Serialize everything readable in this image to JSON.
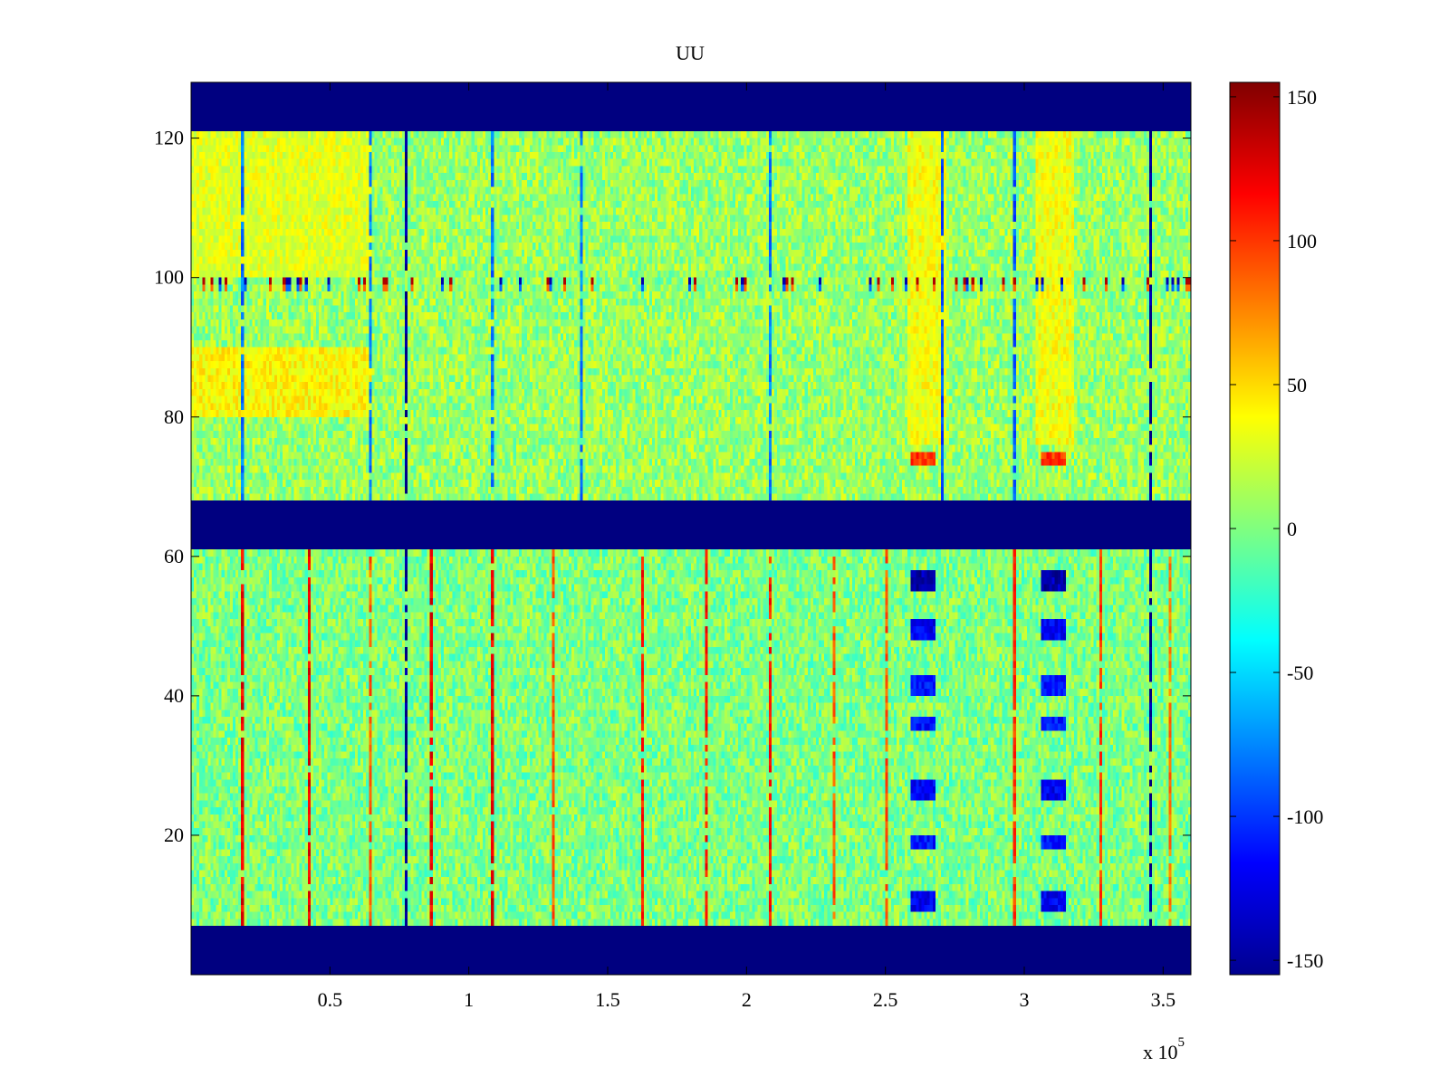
{
  "chart_data": {
    "type": "heatmap",
    "title": "UU",
    "xlabel": "",
    "ylabel": "",
    "x_exponent_label": "x 10",
    "x_exponent_power": "5",
    "xlim": [
      0,
      360000
    ],
    "ylim": [
      0,
      128
    ],
    "x_ticks": [
      50000,
      100000,
      150000,
      200000,
      250000,
      300000,
      350000
    ],
    "x_tick_labels": [
      "0.5",
      "1",
      "1.5",
      "2",
      "2.5",
      "3",
      "3.5"
    ],
    "y_ticks": [
      20,
      40,
      60,
      80,
      100,
      120
    ],
    "y_tick_labels": [
      "20",
      "40",
      "60",
      "80",
      "100",
      "120"
    ],
    "colormap": "jet",
    "clim": [
      -155,
      155
    ],
    "colorbar_ticks": [
      150,
      100,
      50,
      0,
      -50,
      -100,
      -150
    ],
    "colorbar_tick_labels": [
      "150",
      "100",
      "50",
      "0",
      "-50",
      "-100",
      "-150"
    ],
    "masked_value": -155,
    "masked_row_bands": [
      {
        "y_from": 0,
        "y_to": 7,
        "value": -155
      },
      {
        "y_from": 61,
        "y_to": 68,
        "value": -155
      },
      {
        "y_from": 121,
        "y_to": 128,
        "value": -155
      }
    ],
    "background_mean_by_band": [
      {
        "y_from": 7,
        "y_to": 61,
        "mean": 0
      },
      {
        "y_from": 68,
        "y_to": 98,
        "mean": 8
      },
      {
        "y_from": 98,
        "y_to": 101,
        "mean": 5
      },
      {
        "y_from": 101,
        "y_to": 121,
        "mean": 8
      }
    ],
    "noise_amplitude": 25,
    "vertical_streaks": [
      {
        "x": 18000,
        "value": 120,
        "y_from": 7,
        "y_to": 61
      },
      {
        "x": 42000,
        "value": 120,
        "y_from": 7,
        "y_to": 61
      },
      {
        "x": 64000,
        "value": 90,
        "y_from": 7,
        "y_to": 61
      },
      {
        "x": 77000,
        "value": -150,
        "y_from": 7,
        "y_to": 121
      },
      {
        "x": 86000,
        "value": 120,
        "y_from": 7,
        "y_to": 61
      },
      {
        "x": 108000,
        "value": 120,
        "y_from": 7,
        "y_to": 61
      },
      {
        "x": 130000,
        "value": 90,
        "y_from": 7,
        "y_to": 61
      },
      {
        "x": 162000,
        "value": 110,
        "y_from": 7,
        "y_to": 61
      },
      {
        "x": 185000,
        "value": 110,
        "y_from": 7,
        "y_to": 61
      },
      {
        "x": 208000,
        "value": 110,
        "y_from": 7,
        "y_to": 61
      },
      {
        "x": 231000,
        "value": 90,
        "y_from": 7,
        "y_to": 61
      },
      {
        "x": 250000,
        "value": 90,
        "y_from": 7,
        "y_to": 61
      },
      {
        "x": 296000,
        "value": 100,
        "y_from": 7,
        "y_to": 61
      },
      {
        "x": 327000,
        "value": 100,
        "y_from": 7,
        "y_to": 61
      },
      {
        "x": 345000,
        "value": -150,
        "y_from": 7,
        "y_to": 121
      },
      {
        "x": 352000,
        "value": 80,
        "y_from": 7,
        "y_to": 61
      },
      {
        "x": 18000,
        "value": -80,
        "y_from": 68,
        "y_to": 121
      },
      {
        "x": 64000,
        "value": -80,
        "y_from": 68,
        "y_to": 121
      },
      {
        "x": 108000,
        "value": -80,
        "y_from": 68,
        "y_to": 121
      },
      {
        "x": 140000,
        "value": -80,
        "y_from": 68,
        "y_to": 121
      },
      {
        "x": 208000,
        "value": -80,
        "y_from": 68,
        "y_to": 121
      },
      {
        "x": 270000,
        "value": -90,
        "y_from": 68,
        "y_to": 121
      },
      {
        "x": 296000,
        "value": -90,
        "y_from": 68,
        "y_to": 121
      }
    ],
    "blobs": [
      {
        "x_from": 259000,
        "x_to": 268000,
        "y_from": 55,
        "y_to": 58,
        "value": -140
      },
      {
        "x_from": 259000,
        "x_to": 268000,
        "y_from": 48,
        "y_to": 51,
        "value": -120
      },
      {
        "x_from": 259000,
        "x_to": 268000,
        "y_from": 40,
        "y_to": 43,
        "value": -110
      },
      {
        "x_from": 259000,
        "x_to": 268000,
        "y_from": 35,
        "y_to": 37,
        "value": -110
      },
      {
        "x_from": 259000,
        "x_to": 268000,
        "y_from": 25,
        "y_to": 28,
        "value": -120
      },
      {
        "x_from": 259000,
        "x_to": 268000,
        "y_from": 18,
        "y_to": 20,
        "value": -110
      },
      {
        "x_from": 259000,
        "x_to": 268000,
        "y_from": 9,
        "y_to": 12,
        "value": -120
      },
      {
        "x_from": 306000,
        "x_to": 315000,
        "y_from": 55,
        "y_to": 58,
        "value": -140
      },
      {
        "x_from": 306000,
        "x_to": 315000,
        "y_from": 48,
        "y_to": 51,
        "value": -120
      },
      {
        "x_from": 306000,
        "x_to": 315000,
        "y_from": 40,
        "y_to": 43,
        "value": -110
      },
      {
        "x_from": 306000,
        "x_to": 315000,
        "y_from": 35,
        "y_to": 37,
        "value": -110
      },
      {
        "x_from": 306000,
        "x_to": 315000,
        "y_from": 25,
        "y_to": 28,
        "value": -120
      },
      {
        "x_from": 306000,
        "x_to": 315000,
        "y_from": 18,
        "y_to": 20,
        "value": -110
      },
      {
        "x_from": 306000,
        "x_to": 315000,
        "y_from": 9,
        "y_to": 12,
        "value": -120
      },
      {
        "x_from": 259000,
        "x_to": 268000,
        "y_from": 73,
        "y_to": 75,
        "value": 100
      },
      {
        "x_from": 306000,
        "x_to": 315000,
        "y_from": 73,
        "y_to": 75,
        "value": 100
      },
      {
        "x_from": 258000,
        "x_to": 272000,
        "y_from": 76,
        "y_to": 121,
        "value": 35
      },
      {
        "x_from": 304000,
        "x_to": 318000,
        "y_from": 76,
        "y_to": 121,
        "value": 35
      },
      {
        "x_from": 0,
        "x_to": 65000,
        "y_from": 80,
        "y_to": 90,
        "value": 40
      },
      {
        "x_from": 0,
        "x_to": 65000,
        "y_from": 100,
        "y_to": 121,
        "value": 30
      }
    ],
    "row_99_spikes": "row at y≈99–100 contains alternating red/blue spikes across the width"
  }
}
